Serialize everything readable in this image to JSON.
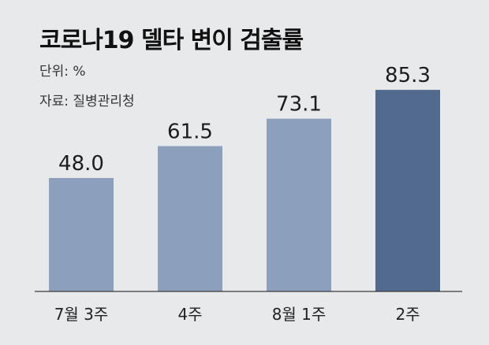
{
  "title": "코로나19 델타 변이 검출률",
  "unit": "단위: %",
  "source": "자료: 질병관리청",
  "colors": {
    "background": "#e8e9eb",
    "bar": "#8c9fbd",
    "bar_highlight": "#536a8f",
    "baseline": "#3a3a3a"
  },
  "chart_data": {
    "type": "bar",
    "categories": [
      "7월 3주",
      "4주",
      "8월 1주",
      "2주"
    ],
    "values": [
      48.0,
      61.5,
      73.1,
      85.3
    ],
    "value_labels": [
      "48.0",
      "61.5",
      "73.1",
      "85.3"
    ],
    "highlight_index": 3,
    "ylim": [
      0,
      100
    ],
    "grid": false,
    "legend": "none"
  }
}
